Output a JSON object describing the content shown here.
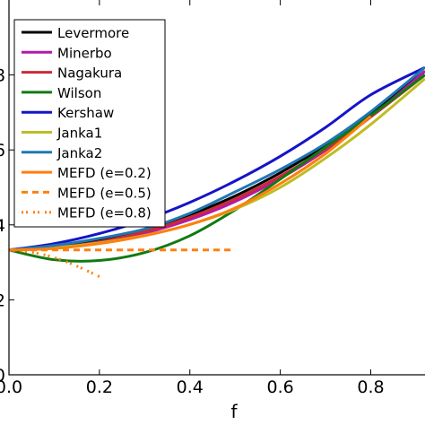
{
  "chart_data": {
    "type": "line",
    "title": "",
    "xlabel": "f",
    "ylabel": "",
    "xlim": [
      0.0,
      0.92
    ],
    "ylim": [
      0.0,
      1.0
    ],
    "x_ticks": [
      {
        "value": 0.0,
        "label": "0.0"
      },
      {
        "value": 0.2,
        "label": "0.2"
      },
      {
        "value": 0.4,
        "label": "0.4"
      },
      {
        "value": 0.6,
        "label": "0.6"
      },
      {
        "value": 0.8,
        "label": "0.8"
      }
    ],
    "y_ticks": [
      {
        "value": 0.0,
        "label": "0"
      },
      {
        "value": 0.2,
        "label": "2"
      },
      {
        "value": 0.4,
        "label": "4"
      },
      {
        "value": 0.6,
        "label": "6"
      },
      {
        "value": 0.8,
        "label": "8"
      }
    ],
    "grid": false,
    "legend_position": "top-left",
    "series": [
      {
        "name": "Levermore",
        "color": "#000000",
        "style": "solid",
        "x": [
          0,
          0.1,
          0.2,
          0.3,
          0.4,
          0.5,
          0.6,
          0.7,
          0.8,
          0.92
        ],
        "y": [
          0.333,
          0.34,
          0.358,
          0.387,
          0.427,
          0.477,
          0.539,
          0.612,
          0.697,
          0.81
        ]
      },
      {
        "name": "Minerbo",
        "color": "#b319a8",
        "style": "solid",
        "x": [
          0,
          0.1,
          0.2,
          0.3,
          0.4,
          0.5,
          0.6,
          0.7,
          0.8,
          0.92
        ],
        "y": [
          0.333,
          0.338,
          0.353,
          0.378,
          0.414,
          0.462,
          0.524,
          0.599,
          0.688,
          0.81
        ]
      },
      {
        "name": "Nagakura",
        "color": "#cc2936",
        "style": "solid",
        "x": [
          0,
          0.1,
          0.2,
          0.3,
          0.4,
          0.5,
          0.6,
          0.7,
          0.8,
          0.92
        ],
        "y": [
          0.333,
          0.339,
          0.355,
          0.382,
          0.42,
          0.469,
          0.53,
          0.603,
          0.688,
          0.8
        ]
      },
      {
        "name": "Wilson",
        "color": "#117a11",
        "style": "solid",
        "x": [
          0,
          0.1,
          0.2,
          0.3,
          0.4,
          0.5,
          0.6,
          0.7,
          0.8,
          0.92
        ],
        "y": [
          0.333,
          0.307,
          0.305,
          0.326,
          0.371,
          0.44,
          0.522,
          0.607,
          0.692,
          0.8
        ]
      },
      {
        "name": "Kershaw",
        "color": "#1414c8",
        "style": "solid",
        "x": [
          0,
          0.1,
          0.2,
          0.3,
          0.4,
          0.5,
          0.6,
          0.7,
          0.8,
          0.92
        ],
        "y": [
          0.333,
          0.35,
          0.377,
          0.413,
          0.46,
          0.517,
          0.583,
          0.66,
          0.747,
          0.82
        ]
      },
      {
        "name": "Janka1",
        "color": "#bdbd24",
        "style": "solid",
        "x": [
          0,
          0.1,
          0.2,
          0.3,
          0.4,
          0.5,
          0.6,
          0.7,
          0.8,
          0.92
        ],
        "y": [
          0.333,
          0.339,
          0.352,
          0.372,
          0.401,
          0.442,
          0.5,
          0.578,
          0.668,
          0.79
        ]
      },
      {
        "name": "Janka2",
        "color": "#1f77b4",
        "style": "solid",
        "x": [
          0,
          0.1,
          0.2,
          0.3,
          0.4,
          0.5,
          0.6,
          0.7,
          0.8,
          0.92
        ],
        "y": [
          0.333,
          0.345,
          0.364,
          0.389,
          0.431,
          0.488,
          0.548,
          0.617,
          0.702,
          0.82
        ]
      },
      {
        "name": "MEFD (e=0.2)",
        "color": "#ff7f0e",
        "style": "solid",
        "x": [
          0,
          0.1,
          0.2,
          0.3,
          0.4,
          0.5,
          0.6,
          0.7,
          0.8
        ],
        "y": [
          0.333,
          0.337,
          0.35,
          0.371,
          0.401,
          0.445,
          0.51,
          0.59,
          0.69
        ]
      },
      {
        "name": "MEFD (e=0.5)",
        "color": "#ff7f0e",
        "style": "dashed",
        "x": [
          0,
          0.1,
          0.2,
          0.3,
          0.4,
          0.5
        ],
        "y": [
          0.333,
          0.333,
          0.333,
          0.333,
          0.333,
          0.333
        ]
      },
      {
        "name": "MEFD (e=0.8)",
        "color": "#ff7f0e",
        "style": "dashdot",
        "x": [
          0,
          0.05,
          0.1,
          0.15,
          0.2
        ],
        "y": [
          0.333,
          0.327,
          0.313,
          0.29,
          0.262
        ]
      }
    ]
  }
}
